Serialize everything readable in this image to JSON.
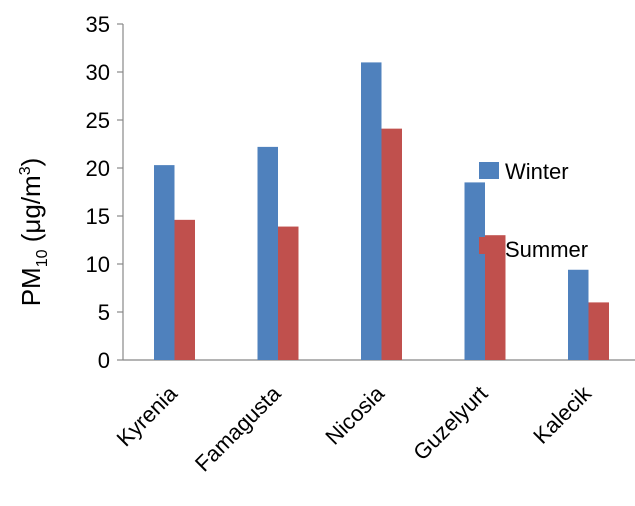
{
  "chart_data": {
    "type": "bar",
    "ylabel": {
      "base": "PM",
      "subscript": "10",
      "unit_prefix": " (μg/m",
      "superscript": "3",
      "unit_suffix": ")"
    },
    "categories": [
      "Kyrenia",
      "Famagusta",
      "Nicosia",
      "Guzelyurt",
      "Kalecik"
    ],
    "series": [
      {
        "name": "Winter",
        "color": "#4F81BD",
        "values": [
          20.3,
          22.2,
          31.0,
          18.5,
          9.4
        ]
      },
      {
        "name": "Summer",
        "color": "#C0504D",
        "values": [
          14.6,
          13.9,
          24.1,
          13.0,
          6.0
        ]
      }
    ],
    "ylim": [
      0,
      35
    ],
    "yticks": [
      "0",
      "5",
      "10",
      "15",
      "20",
      "25",
      "30",
      "35"
    ],
    "grid": false,
    "legend_position": "right"
  }
}
